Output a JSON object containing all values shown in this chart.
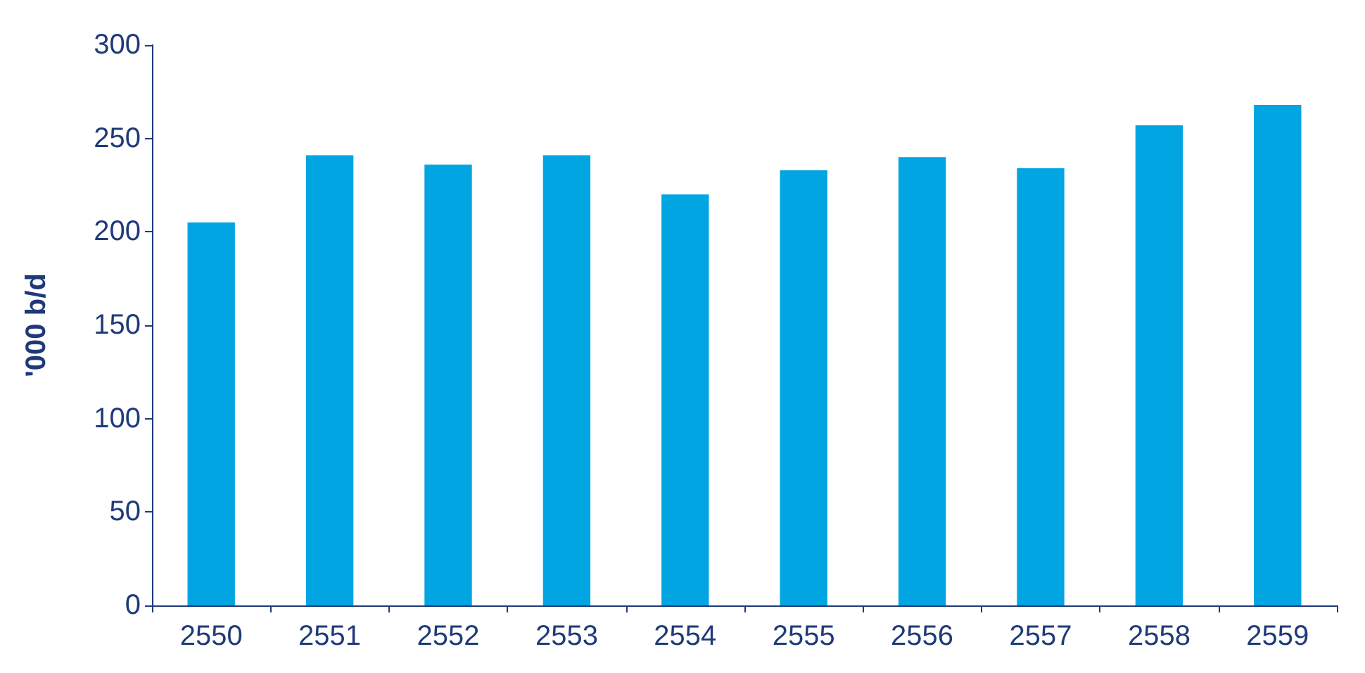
{
  "chart_data": {
    "type": "bar",
    "ylabel": "'000 b/d",
    "categories": [
      "2550",
      "2551",
      "2552",
      "2553",
      "2554",
      "2555",
      "2556",
      "2557",
      "2558",
      "2559"
    ],
    "values": [
      205,
      241,
      236,
      241,
      220,
      233,
      240,
      234,
      257,
      268
    ],
    "color": "#00a5e2",
    "ylim": [
      0,
      300
    ],
    "yticks": [
      0,
      50,
      100,
      150,
      200,
      250,
      300
    ],
    "grid": false
  }
}
